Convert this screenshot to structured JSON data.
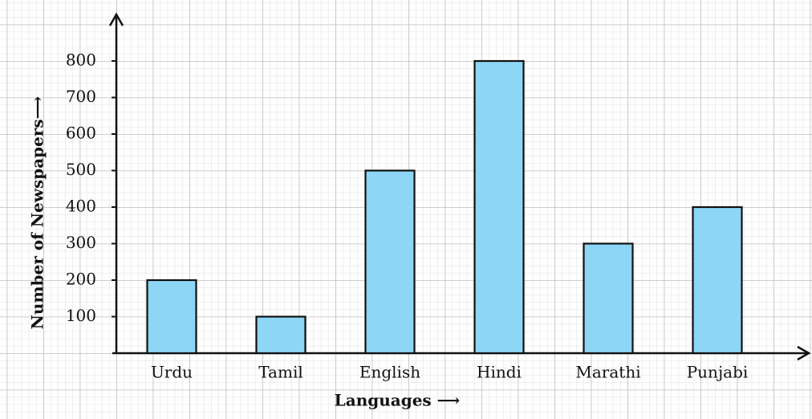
{
  "chart_data": {
    "type": "bar",
    "categories": [
      "Urdu",
      "Tamil",
      "English",
      "Hindi",
      "Marathi",
      "Punjabi"
    ],
    "values": [
      200,
      100,
      500,
      800,
      300,
      400
    ],
    "color": "#8dd6f5",
    "xlabel": "Languages ⟶",
    "ylabel": "Number of Newspapers⟶",
    "ylim": [
      0,
      900
    ],
    "yticks": [
      100,
      200,
      300,
      400,
      500,
      600,
      700,
      800
    ]
  }
}
